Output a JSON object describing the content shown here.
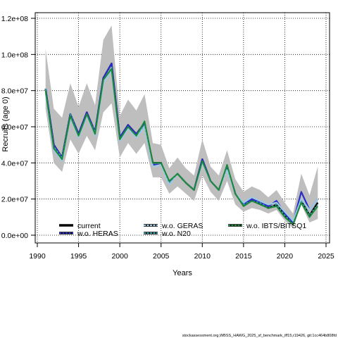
{
  "chart_data": {
    "type": "line",
    "xlabel": "Years",
    "ylabel": "Recruits (age 0)",
    "xlim": [
      1990,
      2025
    ],
    "ylim": [
      0,
      120000000
    ],
    "x_ticks": [
      1990,
      1995,
      2000,
      2005,
      2010,
      2015,
      2020,
      2025
    ],
    "y_ticks": [
      0,
      20000000,
      40000000,
      60000000,
      80000000,
      100000000,
      120000000
    ],
    "x_tick_labels": [
      "1990",
      "1995",
      "2000",
      "2005",
      "2010",
      "2015",
      "2020",
      "2025"
    ],
    "y_tick_labels": [
      "0.0e+00",
      "2.0e+07",
      "4.0e+07",
      "6.0e+07",
      "8.0e+07",
      "1.0e+08",
      "1.2e+08"
    ],
    "grid": true,
    "legend_position": "bottom",
    "x": [
      1991,
      1992,
      1993,
      1994,
      1995,
      1996,
      1997,
      1998,
      1999,
      2000,
      2001,
      2002,
      2003,
      2004,
      2005,
      2006,
      2007,
      2008,
      2009,
      2010,
      2011,
      2012,
      2013,
      2014,
      2015,
      2016,
      2017,
      2018,
      2019,
      2020,
      2021,
      2022,
      2023,
      2024
    ],
    "band": {
      "color": "#bebebe",
      "upper": [
        103000000,
        70000000,
        65000000,
        84000000,
        71000000,
        84000000,
        72000000,
        108000000,
        116000000,
        66000000,
        75000000,
        69000000,
        78000000,
        51000000,
        50000000,
        37000000,
        43000000,
        37000000,
        33000000,
        53000000,
        38000000,
        33000000,
        47000000,
        31000000,
        24000000,
        27000000,
        25000000,
        21000000,
        25000000,
        18000000,
        12000000,
        34000000,
        22000000,
        38000000
      ],
      "lower": [
        70000000,
        40000000,
        35000000,
        53000000,
        45000000,
        55000000,
        47000000,
        68000000,
        73000000,
        43000000,
        51000000,
        45000000,
        51000000,
        32000000,
        32000000,
        23000000,
        27000000,
        23000000,
        19000000,
        33000000,
        24000000,
        19000000,
        30000000,
        17000000,
        13000000,
        15000000,
        14000000,
        12000000,
        14000000,
        8000000,
        4000000,
        17000000,
        7000000,
        9000000
      ]
    },
    "series": [
      {
        "name": "current",
        "color": "#000000",
        "dash": "",
        "values": [
          81000000,
          50000000,
          43000000,
          67000000,
          56000000,
          68000000,
          57000000,
          87000000,
          95000000,
          54000000,
          61000000,
          56000000,
          62000000,
          40000000,
          40000000,
          29000000,
          34000000,
          29000000,
          25000000,
          42000000,
          30000000,
          25000000,
          38000000,
          23000000,
          17000000,
          19000000,
          18000000,
          15000000,
          17000000,
          11000000,
          6000000,
          19000000,
          11000000,
          18000000
        ]
      },
      {
        "name": "w.o. HERAS",
        "color": "#2c2cc8",
        "dash": "",
        "values": [
          81000000,
          50000000,
          43000000,
          67000000,
          56000000,
          68000000,
          57000000,
          87000000,
          95000000,
          54000000,
          61000000,
          56000000,
          62000000,
          39000000,
          39000000,
          29000000,
          34000000,
          29000000,
          25000000,
          42000000,
          30000000,
          25000000,
          38000000,
          23000000,
          17000000,
          20000000,
          18000000,
          16000000,
          19000000,
          12000000,
          7000000,
          24000000,
          14000000,
          20000000
        ]
      },
      {
        "name": "w.o. GERAS",
        "color": "#9ec9e2",
        "dash": "",
        "values": [
          79000000,
          47000000,
          41000000,
          65000000,
          54000000,
          66000000,
          55000000,
          84000000,
          91000000,
          52000000,
          59000000,
          54000000,
          60000000,
          38000000,
          39000000,
          28000000,
          34000000,
          29000000,
          25000000,
          40000000,
          30000000,
          25000000,
          36000000,
          23000000,
          18000000,
          21000000,
          19000000,
          17000000,
          18000000,
          13000000,
          8000000,
          20000000,
          14000000,
          20000000
        ]
      },
      {
        "name": "w.o. N20",
        "color": "#3aa8a8",
        "dash": "3,2",
        "values": [
          81000000,
          49000000,
          43000000,
          67000000,
          55000000,
          67000000,
          57000000,
          86000000,
          93000000,
          53000000,
          60000000,
          55000000,
          61000000,
          40000000,
          40000000,
          29000000,
          34000000,
          29000000,
          25000000,
          41000000,
          30000000,
          25000000,
          38000000,
          23000000,
          17000000,
          19000000,
          18000000,
          15000000,
          17000000,
          11000000,
          6000000,
          19000000,
          11000000,
          17000000
        ]
      },
      {
        "name": "w.o. IBTS/BITSQ1",
        "color": "#1a8a3a",
        "dash": "",
        "values": [
          80000000,
          48000000,
          42000000,
          66000000,
          55000000,
          67000000,
          56000000,
          86000000,
          92000000,
          53000000,
          60000000,
          55000000,
          63000000,
          40000000,
          40000000,
          30000000,
          34000000,
          29000000,
          25000000,
          41000000,
          30000000,
          25000000,
          39000000,
          23000000,
          16000000,
          19000000,
          17000000,
          15000000,
          16000000,
          10000000,
          6000000,
          18000000,
          10000000,
          16000000
        ]
      }
    ],
    "legend": [
      {
        "label": "current",
        "color": "#000000"
      },
      {
        "label": "w.o. HERAS",
        "color": "#2c2cc8"
      },
      {
        "label": "w.o. GERAS",
        "color": "#9ec9e2"
      },
      {
        "label": "w.o. N20",
        "color": "#3aa8a8"
      },
      {
        "label": "w.o. IBTS/BITSQ1",
        "color": "#1a8a3a"
      }
    ]
  },
  "footer_text": "stockassessment.org,WBSS_HAWG_2025_sf_benchmark_iff15,r19426, git:1cc464b808fd"
}
